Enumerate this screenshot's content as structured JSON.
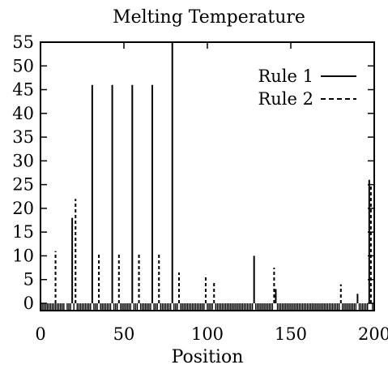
{
  "chart_data": {
    "type": "bar",
    "title": "Melting Temperature",
    "xlabel": "Position",
    "ylabel": "",
    "xlim": [
      0,
      200
    ],
    "ylim": [
      0,
      55
    ],
    "xticks": [
      0,
      50,
      100,
      150,
      200
    ],
    "yticks": [
      0,
      5,
      10,
      15,
      20,
      25,
      30,
      35,
      40,
      45,
      50,
      55
    ],
    "grid": false,
    "legend_position": "top-right",
    "series": [
      {
        "name": "Rule 1",
        "style": "solid",
        "points": [
          {
            "x": 19,
            "y": 18
          },
          {
            "x": 31,
            "y": 46
          },
          {
            "x": 43,
            "y": 46
          },
          {
            "x": 55,
            "y": 46
          },
          {
            "x": 67,
            "y": 46
          },
          {
            "x": 79,
            "y": 56
          },
          {
            "x": 128,
            "y": 10
          },
          {
            "x": 141,
            "y": 3
          },
          {
            "x": 190,
            "y": 2
          },
          {
            "x": 197,
            "y": 26
          }
        ]
      },
      {
        "name": "Rule 2",
        "style": "dashed",
        "points": [
          {
            "x": 9,
            "y": 11
          },
          {
            "x": 21,
            "y": 22
          },
          {
            "x": 35,
            "y": 10.5
          },
          {
            "x": 47,
            "y": 10.5
          },
          {
            "x": 59,
            "y": 10.5
          },
          {
            "x": 71,
            "y": 10.5
          },
          {
            "x": 83,
            "y": 6.5
          },
          {
            "x": 99,
            "y": 6
          },
          {
            "x": 104,
            "y": 4.5
          },
          {
            "x": 140,
            "y": 7.5
          },
          {
            "x": 180,
            "y": 4
          },
          {
            "x": 198,
            "y": 25
          }
        ]
      }
    ],
    "baseline_markers_x": [
      1,
      2,
      3,
      4,
      5,
      6,
      7,
      8,
      9,
      10,
      11,
      12,
      13,
      14,
      16,
      17,
      18,
      20,
      22,
      23,
      24,
      25,
      26,
      27,
      28,
      29,
      30,
      32,
      33,
      34,
      36,
      37,
      38,
      39,
      40,
      41,
      42,
      44,
      45,
      46,
      48,
      49,
      50,
      51,
      52,
      53,
      54,
      56,
      57,
      58,
      60,
      61,
      62,
      63,
      64,
      65,
      66,
      68,
      69,
      70,
      72,
      73,
      74,
      75,
      76,
      77,
      78,
      80,
      81,
      82,
      84,
      85,
      86,
      87,
      88,
      89,
      90,
      91,
      92,
      93,
      94,
      95,
      96,
      97,
      98,
      100,
      101,
      102,
      103,
      105,
      106,
      107,
      108,
      109,
      110,
      111,
      112,
      113,
      114,
      115,
      116,
      117,
      118,
      119,
      120,
      121,
      122,
      123,
      124,
      125,
      126,
      127,
      129,
      130,
      131,
      132,
      133,
      134,
      135,
      136,
      137,
      138,
      139,
      142,
      143,
      144,
      145,
      146,
      147,
      148,
      149,
      150,
      151,
      152,
      153,
      154,
      155,
      156,
      157,
      158,
      159,
      160,
      161,
      162,
      163,
      164,
      165,
      166,
      167,
      168,
      169,
      170,
      171,
      172,
      173,
      174,
      175,
      176,
      177,
      178,
      179,
      181,
      182,
      183,
      184,
      185,
      186,
      187,
      188,
      189,
      191,
      192,
      193,
      194,
      195,
      196,
      199
    ]
  }
}
